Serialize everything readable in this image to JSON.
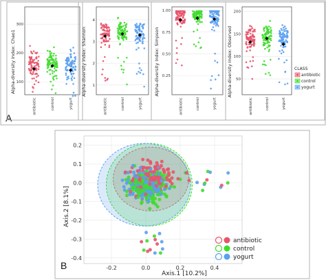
{
  "panel_labels": {
    "a": "A",
    "b": "B"
  },
  "legend": {
    "title": "CLASS",
    "entries": [
      "antibiotic",
      "control",
      "yogurt"
    ]
  },
  "colors": {
    "antibiotic": "#e8546b",
    "control": "#3fdc2c",
    "yogurt": "#5aa0ef",
    "mean_marker": "#000000"
  },
  "chart_data": [
    {
      "type": "scatter",
      "title": "",
      "ylabel": "Alpha-diversity Index: Chao1",
      "categories": [
        "antibiotic",
        "control",
        "yogurt"
      ],
      "yticks": [
        "100",
        "200",
        "300"
      ],
      "ylim": [
        55,
        360
      ],
      "ytick_values": [
        100,
        200,
        300
      ],
      "series": [
        {
          "name": "antibiotic",
          "mean": 145,
          "range": [
            60,
            330
          ],
          "center": 160
        },
        {
          "name": "control",
          "mean": 155,
          "range": [
            50,
            340
          ],
          "center": 170
        },
        {
          "name": "yogurt",
          "mean": 140,
          "range": [
            50,
            330
          ],
          "center": 160
        }
      ]
    },
    {
      "type": "scatter",
      "title": "",
      "ylabel": "Alpha-diversity Index: Shannon",
      "categories": [
        "antibiotic",
        "control",
        "yogurt"
      ],
      "yticks": [
        "1",
        "2",
        "3",
        "4"
      ],
      "ylim": [
        0.55,
        4.6
      ],
      "ytick_values": [
        1,
        2,
        3,
        4
      ],
      "series": [
        {
          "name": "antibiotic",
          "mean": 3.25,
          "range": [
            1.0,
            4.3
          ],
          "center": 3.3
        },
        {
          "name": "control",
          "mean": 3.35,
          "range": [
            1.0,
            4.4
          ],
          "center": 3.5
        },
        {
          "name": "yogurt",
          "mean": 3.3,
          "range": [
            0.7,
            4.3
          ],
          "center": 3.4
        }
      ]
    },
    {
      "type": "scatter",
      "title": "",
      "ylabel": "Alpha-diversity Index: Simpson",
      "categories": [
        "antibiotic",
        "control",
        "yogurt"
      ],
      "yticks": [
        "0.25",
        "0.50",
        "0.75",
        "1.00"
      ],
      "ylim": [
        0.03,
        1.04
      ],
      "ytick_values": [
        0.25,
        0.5,
        0.75,
        1.0
      ],
      "series": [
        {
          "name": "antibiotic",
          "mean": 0.89,
          "range": [
            0.33,
            0.99
          ],
          "center": 0.93
        },
        {
          "name": "control",
          "mean": 0.91,
          "range": [
            0.55,
            0.99
          ],
          "center": 0.94
        },
        {
          "name": "yogurt",
          "mean": 0.9,
          "range": [
            0.08,
            0.99
          ],
          "center": 0.93
        }
      ]
    },
    {
      "type": "scatter",
      "title": "",
      "ylabel": "Alpha-diversity Index: Observed",
      "categories": [
        "antibiotic",
        "control",
        "yogurt"
      ],
      "yticks": [
        "50",
        "100",
        "150",
        "200"
      ],
      "ylim": [
        15,
        210
      ],
      "ytick_values": [
        50,
        100,
        150,
        200
      ],
      "series": [
        {
          "name": "antibiotic",
          "mean": 132,
          "range": [
            40,
            200
          ],
          "center": 140
        },
        {
          "name": "control",
          "mean": 140,
          "range": [
            30,
            205
          ],
          "center": 145
        },
        {
          "name": "yogurt",
          "mean": 127,
          "range": [
            30,
            195
          ],
          "center": 140
        }
      ]
    },
    {
      "type": "scatter",
      "title": "",
      "xlabel": "Axis.1   [10.2%]",
      "ylabel": "Axis.2   [8.1%]",
      "xticks": [
        "-0.2",
        "0.0",
        "0.2",
        "0.4"
      ],
      "xtick_values": [
        -0.2,
        0.0,
        0.2,
        0.4
      ],
      "yticks": [
        "-0.4",
        "-0.3",
        "-0.2",
        "-0.1",
        "0.0",
        "0.1",
        "0.2"
      ],
      "ytick_values": [
        -0.4,
        -0.3,
        -0.2,
        -0.1,
        0.0,
        0.1,
        0.2
      ],
      "xlim": [
        -0.36,
        0.56
      ],
      "ylim": [
        -0.43,
        0.25
      ],
      "ellipses": [
        {
          "name": "antibiotic",
          "cx": 0.03,
          "cy": 0.02,
          "rx": 0.22,
          "ry": 0.17
        },
        {
          "name": "control",
          "cx": 0.02,
          "cy": -0.01,
          "rx": 0.25,
          "ry": 0.22
        },
        {
          "name": "yogurt",
          "cx": -0.01,
          "cy": -0.01,
          "rx": 0.27,
          "ry": 0.22
        }
      ],
      "legend_entries": [
        "antibiotic",
        "control",
        "yogurt"
      ]
    }
  ]
}
